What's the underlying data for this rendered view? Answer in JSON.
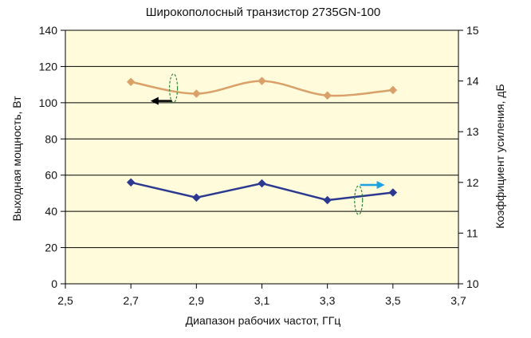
{
  "chart_data": {
    "type": "line",
    "title": "Широкополосный транзистор 2735GN-100",
    "xlabel": "Диапазон рабочих частот, ГГц",
    "ylabel_left": "Выходная мощность, Вт",
    "ylabel_right": "Коэффициент усиления, дБ",
    "xlim": [
      2.5,
      3.7
    ],
    "ylim_left": [
      0,
      140
    ],
    "ylim_right": [
      10,
      15
    ],
    "x_ticks": [
      "2,5",
      "2,7",
      "2,9",
      "3,1",
      "3,3",
      "3,5",
      "3,7"
    ],
    "y_left_ticks": [
      "0",
      "20",
      "40",
      "60",
      "80",
      "100",
      "120",
      "140"
    ],
    "y_right_ticks": [
      "10",
      "11",
      "12",
      "13",
      "14",
      "15"
    ],
    "grid": true,
    "plot_background": "#FFFBDB",
    "series": [
      {
        "axis": "left",
        "smooth": true,
        "color": "#D9A068",
        "marker": "diamond",
        "x": [
          2.7,
          2.9,
          3.1,
          3.3,
          3.5
        ],
        "y": [
          111.5,
          105,
          112,
          104,
          107
        ]
      },
      {
        "axis": "right",
        "smooth": false,
        "color": "#2B3990",
        "marker": "diamond",
        "x": [
          2.7,
          2.9,
          3.1,
          3.3,
          3.5
        ],
        "y": [
          12.0,
          11.7,
          11.98,
          11.65,
          11.8
        ]
      }
    ],
    "annotations": [
      {
        "kind": "arrow",
        "direction": "left",
        "points_to_axis": "left",
        "color": "#000000"
      },
      {
        "kind": "arrow",
        "direction": "right",
        "points_to_axis": "right",
        "color": "#1BA1E2"
      }
    ]
  }
}
